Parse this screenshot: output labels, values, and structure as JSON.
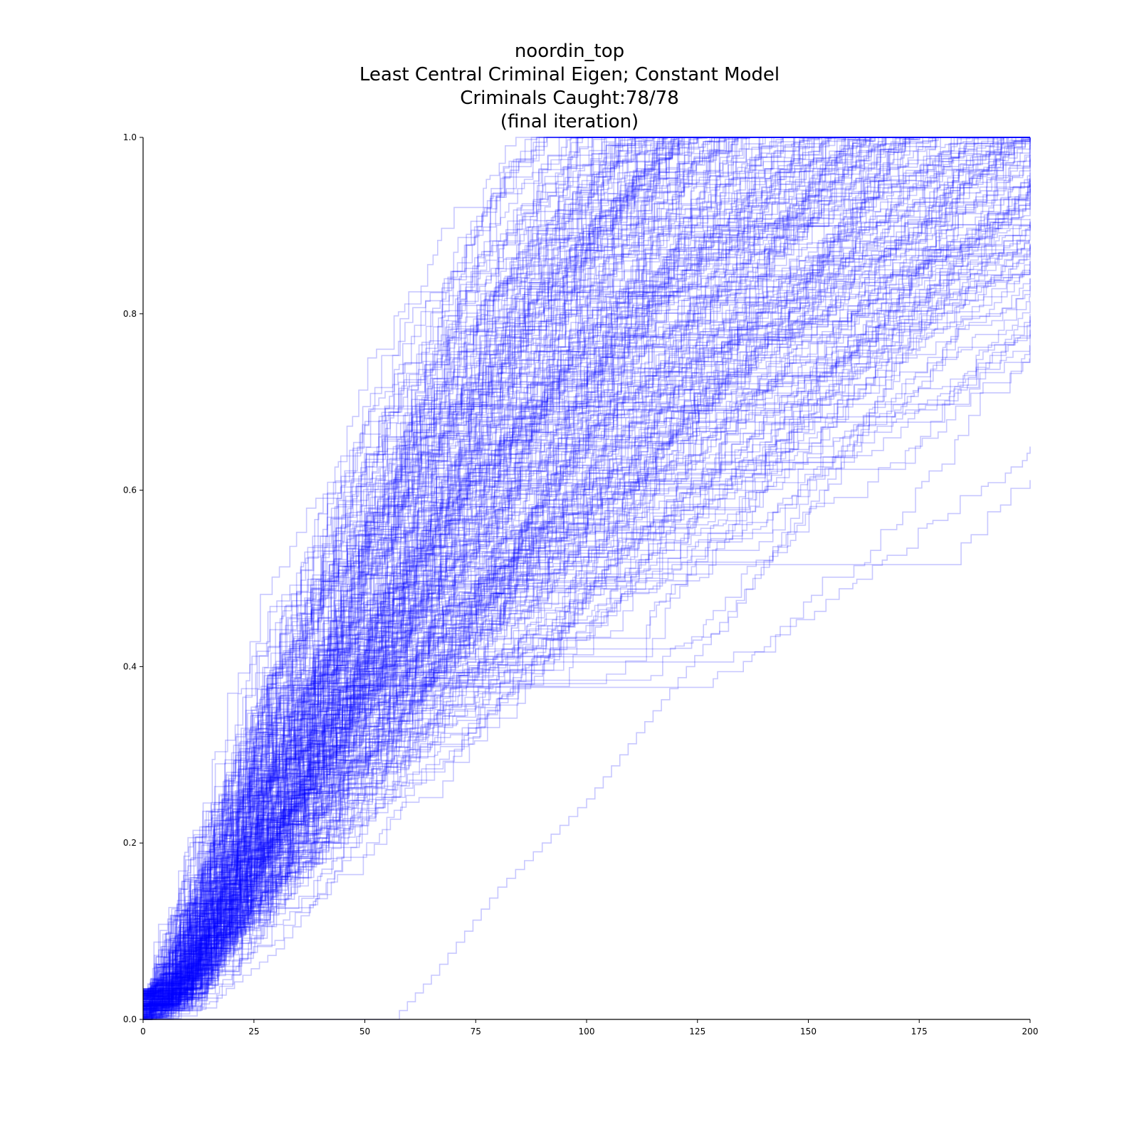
{
  "chart_data": {
    "type": "line",
    "title_lines": [
      "noordin_top",
      "Least Central Criminal Eigen; Constant Model",
      "Criminals Caught:78/78",
      "(final iteration)"
    ],
    "xlabel": "",
    "ylabel": "",
    "xlim": [
      0,
      200
    ],
    "ylim": [
      0.0,
      1.0
    ],
    "x_ticks": [
      "0",
      "25",
      "50",
      "75",
      "100",
      "125",
      "150",
      "175",
      "200"
    ],
    "y_ticks": [
      "0.0",
      "0.2",
      "0.4",
      "0.6",
      "0.8",
      "1.0"
    ],
    "grid": false,
    "legend": "none",
    "line_color": "#0000ff",
    "line_opacity": 0.22,
    "series_count": 300,
    "description_of_series": "",
    "series": [
      {
        "x": [
          0,
          10,
          20,
          30,
          40,
          55,
          70,
          85,
          100,
          115,
          125,
          140,
          200
        ],
        "y": [
          0.0,
          0.12,
          0.28,
          0.4,
          0.48,
          0.57,
          0.68,
          0.8,
          0.9,
          0.97,
          1.0,
          1.0,
          1.0
        ]
      },
      {
        "x": [
          0,
          10,
          20,
          30,
          40,
          50,
          60,
          75,
          90,
          105,
          120,
          135,
          150,
          200
        ],
        "y": [
          0.0,
          0.06,
          0.17,
          0.3,
          0.4,
          0.47,
          0.53,
          0.6,
          0.7,
          0.8,
          0.9,
          0.97,
          1.0,
          1.0
        ]
      },
      {
        "x": [
          0,
          12,
          25,
          35,
          45,
          55,
          70,
          85,
          100,
          115,
          130,
          145,
          165,
          200
        ],
        "y": [
          0.0,
          0.04,
          0.12,
          0.24,
          0.35,
          0.44,
          0.52,
          0.6,
          0.7,
          0.8,
          0.9,
          0.96,
          1.0,
          1.0
        ]
      },
      {
        "x": [
          0,
          15,
          30,
          45,
          60,
          75,
          90,
          110,
          125,
          140,
          160,
          180,
          200
        ],
        "y": [
          0.0,
          0.02,
          0.08,
          0.18,
          0.3,
          0.42,
          0.5,
          0.6,
          0.7,
          0.82,
          0.92,
          0.98,
          1.0
        ]
      },
      {
        "x": [
          0,
          20,
          40,
          56,
          65,
          80,
          100,
          115,
          130,
          145,
          160,
          175,
          200
        ],
        "y": [
          0.0,
          0.0,
          0.0,
          0.0,
          0.05,
          0.15,
          0.25,
          0.35,
          0.45,
          0.55,
          0.65,
          0.8,
          0.88
        ]
      },
      {
        "x": [
          0,
          20,
          35,
          50,
          75,
          100,
          118,
          130,
          150,
          165,
          180,
          200
        ],
        "y": [
          0.0,
          0.05,
          0.2,
          0.35,
          0.42,
          0.42,
          0.42,
          0.44,
          0.6,
          0.7,
          0.82,
          0.85
        ]
      },
      {
        "x": [
          0,
          8,
          18,
          28,
          38,
          48,
          58,
          65,
          75,
          85,
          95,
          110,
          125,
          200
        ],
        "y": [
          0.0,
          0.1,
          0.25,
          0.38,
          0.47,
          0.55,
          0.6,
          0.68,
          0.78,
          0.87,
          0.93,
          0.98,
          1.0,
          1.0
        ]
      }
    ]
  }
}
